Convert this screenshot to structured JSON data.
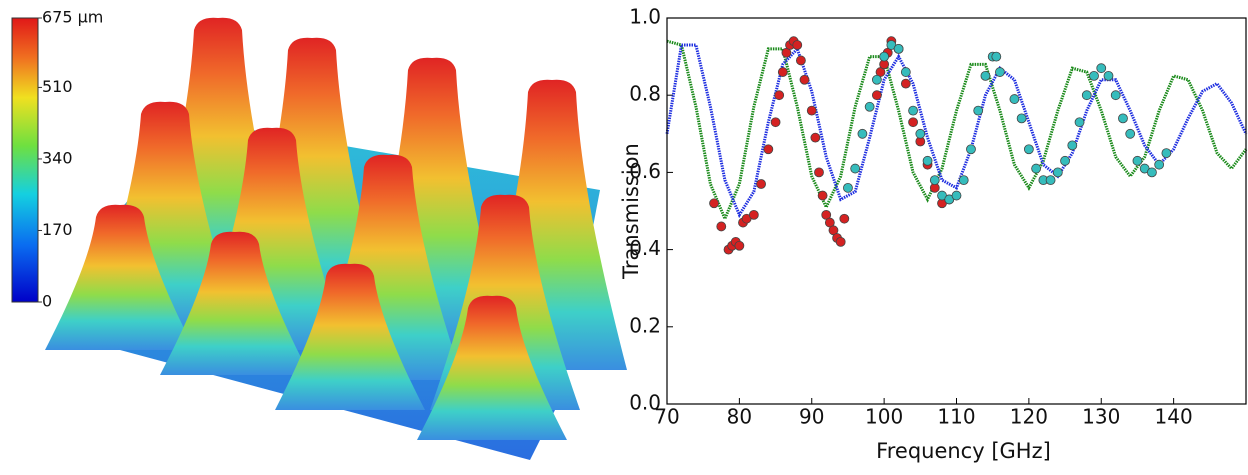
{
  "chart_data": [
    {
      "type": "surface",
      "colorbar": {
        "lim": [
          0,
          675
        ],
        "ticks": [
          0,
          170,
          340,
          510,
          {
            "value": 675,
            "label": "675 μm"
          }
        ]
      }
    },
    {
      "type": "line",
      "xlabel": "Frequency [GHz]",
      "ylabel": "Transmission",
      "xlim": [
        70,
        150
      ],
      "ylim": [
        0,
        1
      ],
      "xticks": [
        70,
        80,
        90,
        100,
        110,
        120,
        130,
        140
      ],
      "yticks": [
        {
          "value": 0,
          "label": "0.0"
        },
        0.2,
        0.4,
        0.6,
        0.8,
        {
          "value": 1,
          "label": "1.0"
        }
      ],
      "series": [
        {
          "mode": "line",
          "color": "#1a8a1a",
          "x": [
            70,
            72,
            74,
            76,
            78,
            80,
            82,
            84,
            86,
            88,
            90,
            92,
            94,
            96,
            98,
            100,
            102,
            104,
            106,
            108,
            110,
            112,
            114,
            116,
            118,
            120,
            122,
            124,
            126,
            128,
            130,
            132,
            134,
            136,
            138,
            140,
            142,
            144,
            146,
            148,
            150
          ],
          "values": [
            0.94,
            0.93,
            0.77,
            0.57,
            0.48,
            0.57,
            0.77,
            0.92,
            0.92,
            0.77,
            0.59,
            0.51,
            0.59,
            0.77,
            0.9,
            0.9,
            0.76,
            0.6,
            0.53,
            0.61,
            0.76,
            0.88,
            0.88,
            0.76,
            0.62,
            0.56,
            0.63,
            0.76,
            0.87,
            0.86,
            0.76,
            0.64,
            0.59,
            0.64,
            0.76,
            0.85,
            0.84,
            0.76,
            0.65,
            0.61,
            0.66
          ]
        },
        {
          "mode": "line",
          "color": "#1f2fe0",
          "x": [
            70,
            72,
            74,
            76,
            78,
            80,
            82,
            84,
            86,
            88,
            90,
            92,
            94,
            96,
            98,
            100,
            102,
            104,
            106,
            108,
            110,
            112,
            114,
            116,
            118,
            120,
            122,
            124,
            126,
            128,
            130,
            132,
            134,
            136,
            138,
            140,
            142,
            144,
            146,
            148,
            150
          ],
          "values": [
            0.7,
            0.93,
            0.93,
            0.77,
            0.58,
            0.49,
            0.55,
            0.73,
            0.88,
            0.92,
            0.81,
            0.64,
            0.53,
            0.55,
            0.69,
            0.84,
            0.9,
            0.83,
            0.69,
            0.58,
            0.56,
            0.66,
            0.8,
            0.87,
            0.84,
            0.73,
            0.62,
            0.59,
            0.65,
            0.76,
            0.84,
            0.84,
            0.76,
            0.67,
            0.62,
            0.66,
            0.74,
            0.81,
            0.83,
            0.78,
            0.7
          ]
        },
        {
          "mode": "markers",
          "color": "#d42222",
          "x": [
            76.5,
            77.5,
            78.5,
            79,
            79.5,
            80,
            80.5,
            81,
            82,
            83,
            84,
            85,
            85.5,
            86,
            86.5,
            87,
            87.5,
            88,
            88.5,
            89,
            90,
            90.5,
            91,
            91.5,
            92,
            92.5,
            93,
            93.5,
            94,
            94.5,
            99,
            99.5,
            100,
            100.5,
            101,
            102,
            103,
            104,
            105,
            106,
            107,
            108,
            109
          ],
          "values": [
            0.52,
            0.46,
            0.4,
            0.41,
            0.42,
            0.41,
            0.47,
            0.48,
            0.49,
            0.57,
            0.66,
            0.73,
            0.8,
            0.86,
            0.91,
            0.93,
            0.94,
            0.93,
            0.89,
            0.84,
            0.76,
            0.69,
            0.6,
            0.54,
            0.49,
            0.47,
            0.45,
            0.43,
            0.42,
            0.48,
            0.8,
            0.86,
            0.88,
            0.91,
            0.94,
            0.92,
            0.83,
            0.73,
            0.68,
            0.62,
            0.56,
            0.52,
            0.53
          ]
        },
        {
          "mode": "markers",
          "color": "#36bcbc",
          "x": [
            95,
            96,
            97,
            98,
            99,
            100,
            101,
            102,
            103,
            104,
            105,
            106,
            107,
            108,
            109,
            110,
            111,
            112,
            113,
            114,
            115,
            115.5,
            116,
            118,
            119,
            120,
            121,
            122,
            123,
            124,
            125,
            126,
            127,
            128,
            129,
            130,
            131,
            132,
            133,
            134,
            135,
            136,
            137,
            138,
            139
          ],
          "values": [
            0.56,
            0.61,
            0.7,
            0.77,
            0.84,
            0.9,
            0.93,
            0.92,
            0.86,
            0.76,
            0.7,
            0.63,
            0.58,
            0.54,
            0.53,
            0.54,
            0.58,
            0.66,
            0.76,
            0.85,
            0.9,
            0.9,
            0.86,
            0.79,
            0.74,
            0.66,
            0.61,
            0.58,
            0.58,
            0.6,
            0.63,
            0.67,
            0.73,
            0.8,
            0.85,
            0.87,
            0.85,
            0.8,
            0.74,
            0.7,
            0.63,
            0.61,
            0.6,
            0.62,
            0.65
          ]
        }
      ]
    }
  ]
}
